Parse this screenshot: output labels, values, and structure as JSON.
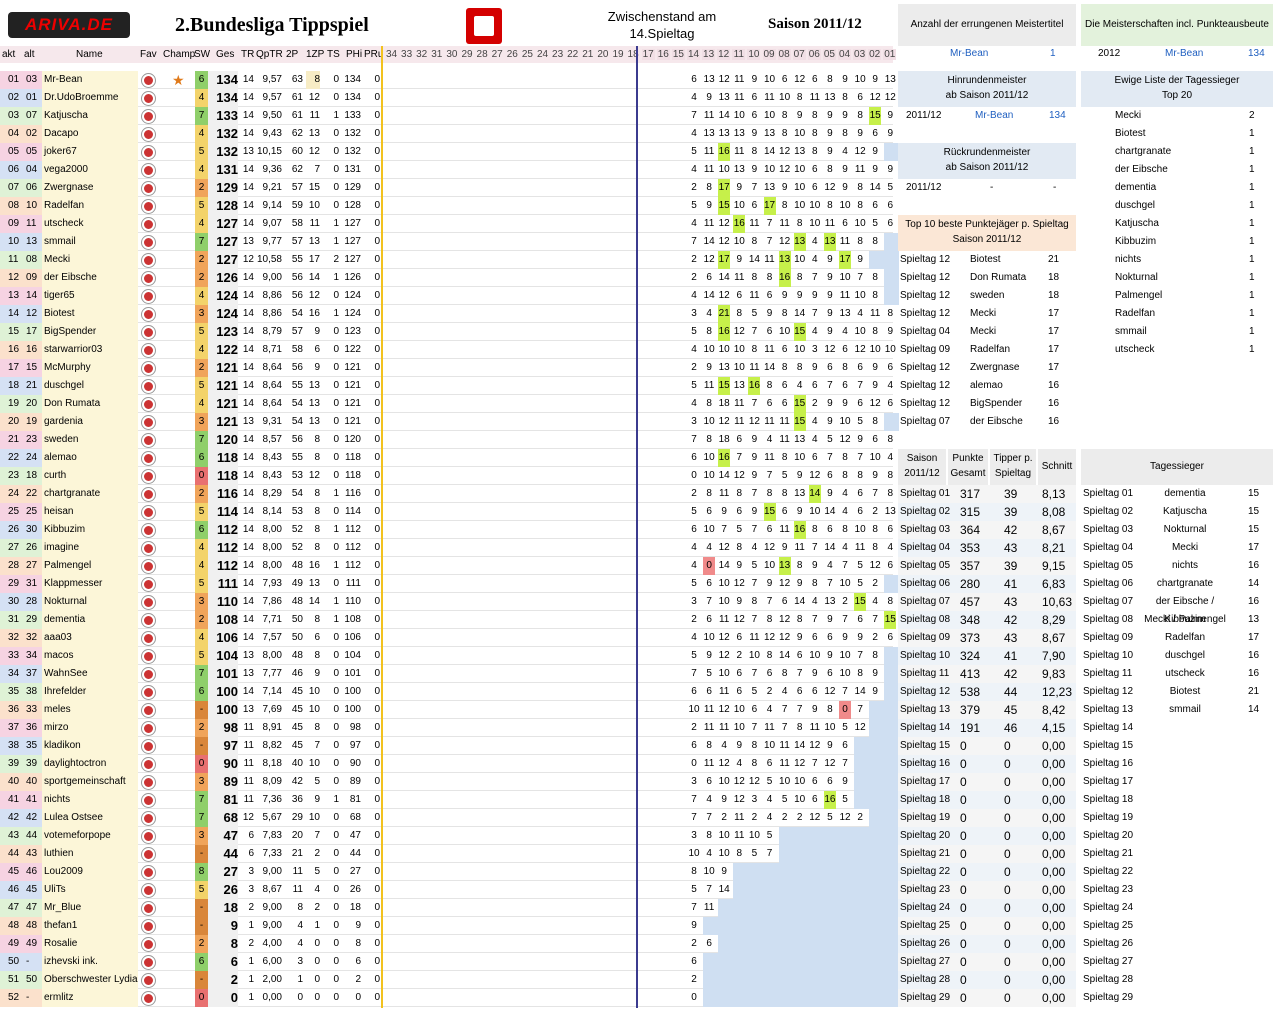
{
  "header": {
    "logo": "ARIVA.DE",
    "title": "2.Bundesliga Tippspiel",
    "zwischen1": "Zwischenstand am",
    "zwischen2": "14.Spieltag",
    "saison": "Saison 2011/12"
  },
  "columns": [
    "akt",
    "alt",
    "Name",
    "Fav",
    "Champ",
    "SW",
    "Ges",
    "TR",
    "QpTR",
    "2P",
    "1ZP",
    "TS",
    "PHi",
    "PRu"
  ],
  "spieltag_cols": [
    "34",
    "33",
    "32",
    "31",
    "30",
    "29",
    "28",
    "27",
    "26",
    "25",
    "24",
    "23",
    "22",
    "21",
    "20",
    "19",
    "18",
    "17",
    "16",
    "15",
    "14",
    "13",
    "12",
    "11",
    "10",
    "09",
    "08",
    "07",
    "06",
    "05",
    "04",
    "03",
    "02",
    "01"
  ],
  "rows": [
    [
      "01",
      "03",
      "Mr-Bean",
      "6",
      "134",
      "14",
      "9,57",
      "63",
      "8",
      "0",
      "134",
      "0",
      "6 13 12 11 9 10 6 12 6 8 9 10 9 13"
    ],
    [
      "02",
      "01",
      "Dr.UdoBroemme",
      "4",
      "134",
      "14",
      "9,57",
      "61",
      "12",
      "0",
      "134",
      "0",
      "4 9 13 11 6 11 10 8 11 13 8 6 12 12"
    ],
    [
      "03",
      "07",
      "Katjuscha",
      "7",
      "133",
      "14",
      "9,50",
      "61",
      "11",
      "1",
      "133",
      "0",
      "7 11 14 10 6 10 8 9 8 9 9 8 15 9"
    ],
    [
      "04",
      "02",
      "Dacapo",
      "4",
      "132",
      "14",
      "9,43",
      "62",
      "13",
      "0",
      "132",
      "0",
      "4 13 13 13 9 13 8 10 8 9 8 9 6 9"
    ],
    [
      "05",
      "05",
      "joker67",
      "5",
      "132",
      "13",
      "10,15",
      "60",
      "12",
      "0",
      "132",
      "0",
      "5 11 16 11 8 14 12 13 8 9 4 12 9"
    ],
    [
      "06",
      "04",
      "vega2000",
      "4",
      "131",
      "14",
      "9,36",
      "62",
      "7",
      "0",
      "131",
      "0",
      "4 11 10 13 9 10 12 10 6 8 9 11 9 9"
    ],
    [
      "07",
      "06",
      "Zwergnase",
      "2",
      "129",
      "14",
      "9,21",
      "57",
      "15",
      "0",
      "129",
      "0",
      "2 8 17 9 7 13 9 10 6 12 9 8 14 5"
    ],
    [
      "08",
      "10",
      "Radelfan",
      "5",
      "128",
      "14",
      "9,14",
      "59",
      "10",
      "0",
      "128",
      "0",
      "5 9 15 10 6 17 8 10 10 8 10 8 6 6"
    ],
    [
      "09",
      "11",
      "utscheck",
      "4",
      "127",
      "14",
      "9,07",
      "58",
      "11",
      "1",
      "127",
      "0",
      "4 11 12 16 11 7 11 8 10 11 6 10 5 6"
    ],
    [
      "10",
      "13",
      "smmail",
      "7",
      "127",
      "13",
      "9,77",
      "57",
      "13",
      "1",
      "127",
      "0",
      "7 14 12 10 8 7 12 13 4 13 11 8 8"
    ],
    [
      "11",
      "08",
      "Mecki",
      "2",
      "127",
      "12",
      "10,58",
      "55",
      "17",
      "2",
      "127",
      "0",
      "2 12 17 9 14 11 13 10 4 9 17 9"
    ],
    [
      "12",
      "09",
      "der Eibsche",
      "2",
      "126",
      "14",
      "9,00",
      "56",
      "14",
      "1",
      "126",
      "0",
      "2 6 14 11 8 8 16 8 7 9 10 7 8"
    ],
    [
      "13",
      "14",
      "tiger65",
      "4",
      "124",
      "14",
      "8,86",
      "56",
      "12",
      "0",
      "124",
      "0",
      "4 14 12 6 11 6 9 9 9 9 11 10 8"
    ],
    [
      "14",
      "12",
      "Biotest",
      "3",
      "124",
      "14",
      "8,86",
      "54",
      "16",
      "1",
      "124",
      "0",
      "3 4 21 8 5 9 8 14 7 9 13 4 11 8"
    ],
    [
      "15",
      "17",
      "BigSpender",
      "5",
      "123",
      "14",
      "8,79",
      "57",
      "9",
      "0",
      "123",
      "0",
      "5 8 16 12 7 6 10 15 4 9 4 10 8 9"
    ],
    [
      "16",
      "16",
      "starwarrior03",
      "4",
      "122",
      "14",
      "8,71",
      "58",
      "6",
      "0",
      "122",
      "0",
      "4 10 10 10 8 11 6 10 3 12 6 12 10 10"
    ],
    [
      "17",
      "15",
      "McMurphy",
      "2",
      "121",
      "14",
      "8,64",
      "56",
      "9",
      "0",
      "121",
      "0",
      "2 9 13 10 11 14 8 8 9 6 8 6 9 6"
    ],
    [
      "18",
      "21",
      "duschgel",
      "5",
      "121",
      "14",
      "8,64",
      "55",
      "13",
      "0",
      "121",
      "0",
      "5 11 15 13 16 8 6 4 6 7 6 7 9 4"
    ],
    [
      "19",
      "20",
      "Don Rumata",
      "4",
      "121",
      "14",
      "8,64",
      "54",
      "13",
      "0",
      "121",
      "0",
      "4 8 18 11 7 6 6 15 2 9 9 6 12 6"
    ],
    [
      "20",
      "19",
      "gardenia",
      "3",
      "121",
      "13",
      "9,31",
      "54",
      "13",
      "0",
      "121",
      "0",
      "3 10 12 11 12 11 11 15 4 9 10 5 8"
    ],
    [
      "21",
      "23",
      "sweden",
      "7",
      "120",
      "14",
      "8,57",
      "56",
      "8",
      "0",
      "120",
      "0",
      "7 8 18 6 9 4 11 13 4 5 12 9 6 8"
    ],
    [
      "22",
      "24",
      "alemao",
      "6",
      "118",
      "14",
      "8,43",
      "55",
      "8",
      "0",
      "118",
      "0",
      "6 10 16 7 9 11 8 10 6 7 8 7 10 4"
    ],
    [
      "23",
      "18",
      "curth",
      "0",
      "118",
      "14",
      "8,43",
      "53",
      "12",
      "0",
      "118",
      "0",
      "0 10 14 12 9 7 5 9 12 6 8 8 9 8"
    ],
    [
      "24",
      "22",
      "chartgranate",
      "2",
      "116",
      "14",
      "8,29",
      "54",
      "8",
      "1",
      "116",
      "0",
      "2 8 11 8 7 8 8 13 14 9 4 6 7 8"
    ],
    [
      "25",
      "25",
      "heisan",
      "5",
      "114",
      "14",
      "8,14",
      "53",
      "8",
      "0",
      "114",
      "0",
      "5 6 9 6 9 15 6 9 10 14 4 6 2 13"
    ],
    [
      "26",
      "30",
      "Kibbuzim",
      "6",
      "112",
      "14",
      "8,00",
      "52",
      "8",
      "1",
      "112",
      "0",
      "6 10 7 5 7 6 11 16 8 6 8 10 8 6"
    ],
    [
      "27",
      "26",
      "imagine",
      "4",
      "112",
      "14",
      "8,00",
      "52",
      "8",
      "0",
      "112",
      "0",
      "4 4 12 8 4 12 9 11 7 14 4 11 8 4"
    ],
    [
      "28",
      "27",
      "Palmengel",
      "4",
      "112",
      "14",
      "8,00",
      "48",
      "16",
      "1",
      "112",
      "0",
      "4 0 14 9 5 10 13 8 9 4 7 5 12 6"
    ],
    [
      "29",
      "31",
      "Klappmesser",
      "5",
      "111",
      "14",
      "7,93",
      "49",
      "13",
      "0",
      "111",
      "0",
      "5 6 10 12 7 9 12 9 8 7 10 5 2"
    ],
    [
      "30",
      "28",
      "Nokturnal",
      "3",
      "110",
      "14",
      "7,86",
      "48",
      "14",
      "1",
      "110",
      "0",
      "3 7 10 9 8 7 6 14 4 13 2 15 4 8"
    ],
    [
      "31",
      "29",
      "dementia",
      "2",
      "108",
      "14",
      "7,71",
      "50",
      "8",
      "1",
      "108",
      "0",
      "2 6 11 12 7 8 12 8 7 9 7 6 7 15"
    ],
    [
      "32",
      "32",
      "aaa03",
      "4",
      "106",
      "14",
      "7,57",
      "50",
      "6",
      "0",
      "106",
      "0",
      "4 10 12 6 11 12 12 9 6 6 9 9 2 6"
    ],
    [
      "33",
      "34",
      "macos",
      "5",
      "104",
      "13",
      "8,00",
      "48",
      "8",
      "0",
      "104",
      "0",
      "5 9 12 2 10 8 14 6 10 9 10 7 8"
    ],
    [
      "34",
      "37",
      "WahnSee",
      "7",
      "101",
      "13",
      "7,77",
      "46",
      "9",
      "0",
      "101",
      "0",
      "7 5 10 6 7 6 8 7 9 6 10 8 9"
    ],
    [
      "35",
      "38",
      "Ihrefelder",
      "6",
      "100",
      "14",
      "7,14",
      "45",
      "10",
      "0",
      "100",
      "0",
      "6 6 11 6 5 2 4 6 6 12 7 14 9"
    ],
    [
      "36",
      "33",
      "meles",
      "-",
      "100",
      "13",
      "7,69",
      "45",
      "10",
      "0",
      "100",
      "0",
      "10 11 12 10 6 4 7 7 9 8 0 7"
    ],
    [
      "37",
      "36",
      "mirzo",
      "2",
      "98",
      "11",
      "8,91",
      "45",
      "8",
      "0",
      "98",
      "0",
      "2 11 11 10 7 11 7 8 11 10 5 12"
    ],
    [
      "38",
      "35",
      "kladikon",
      "-",
      "97",
      "11",
      "8,82",
      "45",
      "7",
      "0",
      "97",
      "0",
      "6 8 4 9 8 10 11 14 12 9 6"
    ],
    [
      "39",
      "39",
      "daylightoctron",
      "0",
      "90",
      "11",
      "8,18",
      "40",
      "10",
      "0",
      "90",
      "0",
      "0 11 12 4 8 6 11 12 7 12 7"
    ],
    [
      "40",
      "40",
      "sportgemeinschaft",
      "3",
      "89",
      "11",
      "8,09",
      "42",
      "5",
      "0",
      "89",
      "0",
      "3 6 10 12 12 5 10 10 6 6 9"
    ],
    [
      "41",
      "41",
      "nichts",
      "7",
      "81",
      "11",
      "7,36",
      "36",
      "9",
      "1",
      "81",
      "0",
      "7 4 9 12 3 4 5 10 6 16 5"
    ],
    [
      "42",
      "42",
      "Lulea Ostsee",
      "7",
      "68",
      "12",
      "5,67",
      "29",
      "10",
      "0",
      "68",
      "0",
      "7 7 2 11 2 4 2 2 12 5 12 2"
    ],
    [
      "43",
      "44",
      "votemeforpope",
      "3",
      "47",
      "6",
      "7,83",
      "20",
      "7",
      "0",
      "47",
      "0",
      "3 8 10 11 10 5"
    ],
    [
      "44",
      "43",
      "luthien",
      "-",
      "44",
      "6",
      "7,33",
      "21",
      "2",
      "0",
      "44",
      "0",
      "10 4 10 8 5 7"
    ],
    [
      "45",
      "46",
      "Lou2009",
      "8",
      "27",
      "3",
      "9,00",
      "11",
      "5",
      "0",
      "27",
      "0",
      "8 10 9"
    ],
    [
      "46",
      "45",
      "UliTs",
      "5",
      "26",
      "3",
      "8,67",
      "11",
      "4",
      "0",
      "26",
      "0",
      "5 7 14"
    ],
    [
      "47",
      "47",
      "Mr_Blue",
      "-",
      "18",
      "2",
      "9,00",
      "8",
      "2",
      "0",
      "18",
      "0",
      "7 11"
    ],
    [
      "48",
      "48",
      "thefan1",
      "-",
      "9",
      "1",
      "9,00",
      "4",
      "1",
      "0",
      "9",
      "0",
      "9"
    ],
    [
      "49",
      "49",
      "Rosalie",
      "2",
      "8",
      "2",
      "4,00",
      "4",
      "0",
      "0",
      "8",
      "0",
      "2 6"
    ],
    [
      "50",
      "-",
      "izhevski ink.",
      "6",
      "6",
      "1",
      "6,00",
      "3",
      "0",
      "0",
      "6",
      "0",
      "6"
    ],
    [
      "51",
      "50",
      "Oberschwester Lydia",
      "-",
      "2",
      "1",
      "2,00",
      "1",
      "0",
      "0",
      "2",
      "0",
      "2"
    ],
    [
      "52",
      "-",
      "ermlitz",
      "0",
      "0",
      "1",
      "0,00",
      "0",
      "0",
      "0",
      "0",
      "0",
      "0"
    ]
  ],
  "meister": {
    "title": "Anzahl der errungenen Meistertitel",
    "name": "Mr-Bean",
    "count": "1"
  },
  "meister_pkt": {
    "title": "Die Meisterschaften incl. Punkteausbeute",
    "year": "2012",
    "name": "Mr-Bean",
    "pts": "134"
  },
  "hinrunde": {
    "t1": "Hinrundenmeister",
    "t2": "ab Saison 2011/12",
    "season": "2011/12",
    "name": "Mr-Bean",
    "pts": "134"
  },
  "rueckrunde": {
    "t1": "Rückrundenmeister",
    "t2": "ab Saison 2011/12",
    "season": "2011/12",
    "name": "-",
    "pts": "-"
  },
  "top10": {
    "t1": "Top 10 beste Punktejäger p. Spieltag",
    "t2": "Saison 2011/12",
    "rows": [
      [
        "Spieltag 12",
        "Biotest",
        "21"
      ],
      [
        "Spieltag 12",
        "Don Rumata",
        "18"
      ],
      [
        "Spieltag 12",
        "sweden",
        "18"
      ],
      [
        "Spieltag 12",
        "Mecki",
        "17"
      ],
      [
        "Spieltag 04",
        "Mecki",
        "17"
      ],
      [
        "Spieltag 09",
        "Radelfan",
        "17"
      ],
      [
        "Spieltag 12",
        "Zwergnase",
        "17"
      ],
      [
        "Spieltag 12",
        "alemao",
        "16"
      ],
      [
        "Spieltag 12",
        "BigSpender",
        "16"
      ],
      [
        "Spieltag 07",
        "der Eibsche",
        "16"
      ]
    ]
  },
  "ewige": {
    "t1": "Ewige Liste der Tagessieger",
    "t2": "Top 20",
    "rows": [
      [
        "Mecki",
        "2"
      ],
      [
        "Biotest",
        "1"
      ],
      [
        "chartgranate",
        "1"
      ],
      [
        "der Eibsche",
        "1"
      ],
      [
        "dementia",
        "1"
      ],
      [
        "duschgel",
        "1"
      ],
      [
        "Katjuscha",
        "1"
      ],
      [
        "Kibbuzim",
        "1"
      ],
      [
        "nichts",
        "1"
      ],
      [
        "Nokturnal",
        "1"
      ],
      [
        "Palmengel",
        "1"
      ],
      [
        "Radelfan",
        "1"
      ],
      [
        "smmail",
        "1"
      ],
      [
        "utscheck",
        "1"
      ]
    ]
  },
  "saisontab": {
    "h1": "Saison",
    "h1b": "2011/12",
    "h2": "Punkte",
    "h2b": "Gesamt",
    "h3": "Tipper p.",
    "h3b": "Spieltag",
    "h4": "Schnitt",
    "rows": [
      [
        "Spieltag 01",
        "317",
        "39",
        "8,13"
      ],
      [
        "Spieltag 02",
        "315",
        "39",
        "8,08"
      ],
      [
        "Spieltag 03",
        "364",
        "42",
        "8,67"
      ],
      [
        "Spieltag 04",
        "353",
        "43",
        "8,21"
      ],
      [
        "Spieltag 05",
        "357",
        "39",
        "9,15"
      ],
      [
        "Spieltag 06",
        "280",
        "41",
        "6,83"
      ],
      [
        "Spieltag 07",
        "457",
        "43",
        "10,63"
      ],
      [
        "Spieltag 08",
        "348",
        "42",
        "8,29"
      ],
      [
        "Spieltag 09",
        "373",
        "43",
        "8,67"
      ],
      [
        "Spieltag 10",
        "324",
        "41",
        "7,90"
      ],
      [
        "Spieltag 11",
        "413",
        "42",
        "9,83"
      ],
      [
        "Spieltag 12",
        "538",
        "44",
        "12,23"
      ],
      [
        "Spieltag 13",
        "379",
        "45",
        "8,42"
      ],
      [
        "Spieltag 14",
        "191",
        "46",
        "4,15"
      ],
      [
        "Spieltag 15",
        "0",
        "0",
        "0,00"
      ],
      [
        "Spieltag 16",
        "0",
        "0",
        "0,00"
      ],
      [
        "Spieltag 17",
        "0",
        "0",
        "0,00"
      ],
      [
        "Spieltag 18",
        "0",
        "0",
        "0,00"
      ],
      [
        "Spieltag 19",
        "0",
        "0",
        "0,00"
      ],
      [
        "Spieltag 20",
        "0",
        "0",
        "0,00"
      ],
      [
        "Spieltag 21",
        "0",
        "0",
        "0,00"
      ],
      [
        "Spieltag 22",
        "0",
        "0",
        "0,00"
      ],
      [
        "Spieltag 23",
        "0",
        "0",
        "0,00"
      ],
      [
        "Spieltag 24",
        "0",
        "0",
        "0,00"
      ],
      [
        "Spieltag 25",
        "0",
        "0",
        "0,00"
      ],
      [
        "Spieltag 26",
        "0",
        "0",
        "0,00"
      ],
      [
        "Spieltag 27",
        "0",
        "0",
        "0,00"
      ],
      [
        "Spieltag 28",
        "0",
        "0",
        "0,00"
      ],
      [
        "Spieltag 29",
        "0",
        "0",
        "0,00"
      ]
    ]
  },
  "tagessieger": {
    "title": "Tagessieger",
    "rows": [
      [
        "Spieltag 01",
        "dementia",
        "15"
      ],
      [
        "Spieltag 02",
        "Katjuscha",
        "15"
      ],
      [
        "Spieltag 03",
        "Nokturnal",
        "15"
      ],
      [
        "Spieltag 04",
        "Mecki",
        "17"
      ],
      [
        "Spieltag 05",
        "nichts",
        "16"
      ],
      [
        "Spieltag 06",
        "chartgranate",
        "14"
      ],
      [
        "Spieltag 07",
        "der Eibsche / Kibbuzim",
        "16"
      ],
      [
        "Spieltag 08",
        "Mecki / Palmengel",
        "13"
      ],
      [
        "Spieltag 09",
        "Radelfan",
        "17"
      ],
      [
        "Spieltag 10",
        "duschgel",
        "16"
      ],
      [
        "Spieltag 11",
        "utscheck",
        "16"
      ],
      [
        "Spieltag 12",
        "Biotest",
        "21"
      ],
      [
        "Spieltag 13",
        "smmail",
        "14"
      ],
      [
        "Spieltag 14",
        ""
      ],
      [
        "Spieltag 15",
        ""
      ],
      [
        "Spieltag 16",
        ""
      ],
      [
        "Spieltag 17",
        ""
      ],
      [
        "Spieltag 18",
        ""
      ],
      [
        "Spieltag 19",
        ""
      ],
      [
        "Spieltag 20",
        ""
      ],
      [
        "Spieltag 21",
        ""
      ],
      [
        "Spieltag 22",
        ""
      ],
      [
        "Spieltag 23",
        ""
      ],
      [
        "Spieltag 24",
        ""
      ],
      [
        "Spieltag 25",
        ""
      ],
      [
        "Spieltag 26",
        ""
      ],
      [
        "Spieltag 27",
        ""
      ],
      [
        "Spieltag 28",
        ""
      ],
      [
        "Spieltag 29",
        ""
      ]
    ]
  },
  "colors": {
    "sw_green": "#8fcf6a",
    "sw_yellow": "#f3d36a",
    "sw_orange": "#f0a45a",
    "sw_red": "#e87070",
    "highlight": "#b8ef3c"
  }
}
